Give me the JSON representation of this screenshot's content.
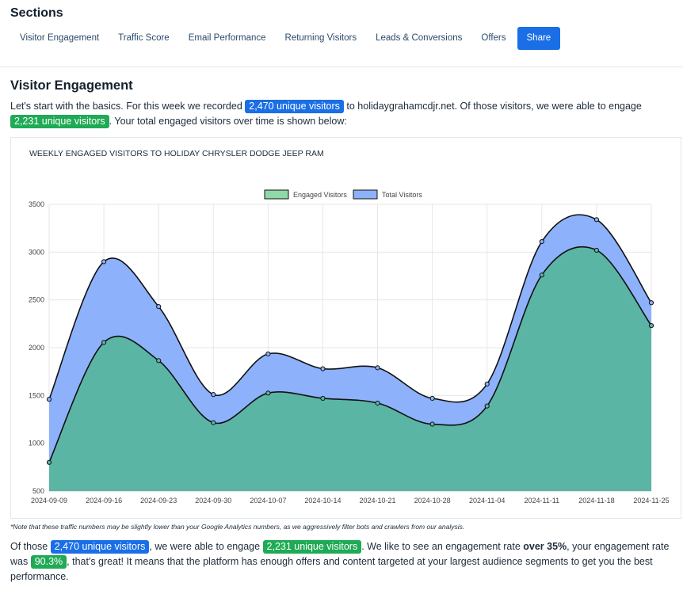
{
  "header": {
    "title": "Sections",
    "nav": [
      {
        "label": "Visitor Engagement"
      },
      {
        "label": "Traffic Score"
      },
      {
        "label": "Email Performance"
      },
      {
        "label": "Returning Visitors"
      },
      {
        "label": "Leads & Conversions"
      },
      {
        "label": "Offers"
      },
      {
        "label": "Share"
      }
    ]
  },
  "section": {
    "title": "Visitor Engagement",
    "intro": {
      "t1": "Let's start with the basics. For this week we recorded ",
      "unique_visitors": "2,470 unique visitors",
      "t2": " to holidaygrahamcdjr.net. Of those visitors, we were able to engage ",
      "engaged_visitors": "2,231 unique visitors",
      "t3": ". Your total engaged visitors over time is shown below:"
    },
    "note": "*Note that these traffic numbers may be slightly lower than your Google Analytics numbers, as we aggressively filter bots and crawlers from our analysis.",
    "summary": {
      "t1": "Of those ",
      "unique_visitors": "2,470 unique visitors",
      "t2": ", we were able to engage ",
      "engaged_visitors": "2,231 unique visitors",
      "t3": ". We like to see an engagement rate ",
      "bold": "over 35%",
      "t4": ", your engagement rate was ",
      "rate": "90.3%",
      "t5": ", that's great! It means that the platform has enough offers and content targeted at your largest audience segments to get you the best performance."
    }
  },
  "colors": {
    "accent_blue": "#1a6ee6",
    "accent_green": "#1faa55",
    "engaged_fill": "#5bb5a5",
    "total_fill": "#8db1fb"
  },
  "chart_data": {
    "type": "area",
    "title": "WEEKLY ENGAGED VISITORS TO HOLIDAY CHRYSLER DODGE JEEP RAM",
    "categories": [
      "2024-09-09",
      "2024-09-16",
      "2024-09-23",
      "2024-09-30",
      "2024-10-07",
      "2024-10-14",
      "2024-10-21",
      "2024-10-28",
      "2024-11-04",
      "2024-11-11",
      "2024-11-18",
      "2024-11-25"
    ],
    "series": [
      {
        "name": "Engaged Visitors",
        "color": "#5bb5a5",
        "legend_color": "#8fd8a8",
        "values": [
          800,
          2055,
          1865,
          1215,
          1525,
          1470,
          1420,
          1200,
          1390,
          2760,
          3020,
          2231
        ]
      },
      {
        "name": "Total Visitors",
        "color": "#8db1fb",
        "legend_color": "#8db1fb",
        "values": [
          1460,
          2900,
          2430,
          1510,
          1935,
          1780,
          1790,
          1470,
          1620,
          3110,
          3340,
          2470
        ]
      }
    ],
    "ylim": [
      500,
      3500
    ],
    "yticks": [
      500,
      1000,
      1500,
      2000,
      2500,
      3000,
      3500
    ],
    "grid": true,
    "legend_position": "top"
  }
}
